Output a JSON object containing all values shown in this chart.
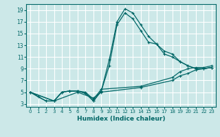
{
  "xlabel": "Humidex (Indice chaleur)",
  "bg_color": "#cce8e8",
  "line_color": "#006666",
  "grid_color": "#ffffff",
  "xlim": [
    -0.5,
    23.5
  ],
  "ylim": [
    2.5,
    20
  ],
  "xticks": [
    0,
    1,
    2,
    3,
    4,
    5,
    6,
    7,
    8,
    9,
    10,
    11,
    12,
    13,
    14,
    15,
    16,
    17,
    18,
    19,
    20,
    21,
    22,
    23
  ],
  "yticks": [
    3,
    5,
    7,
    9,
    11,
    13,
    15,
    17,
    19
  ],
  "series": [
    {
      "x": [
        0,
        1,
        2,
        3,
        4,
        5,
        6,
        7,
        8,
        9,
        10,
        11,
        12,
        13,
        14,
        15,
        16,
        17,
        18,
        19,
        20,
        21,
        22,
        23
      ],
      "y": [
        5,
        4.2,
        3.5,
        3.5,
        5.0,
        5.2,
        5.2,
        4.8,
        3.5,
        5.2,
        10.5,
        17.0,
        19.2,
        18.5,
        16.5,
        14.5,
        13.2,
        12.0,
        11.5,
        10.2,
        9.5,
        9.0,
        9.0,
        9.2
      ]
    },
    {
      "x": [
        0,
        2,
        3,
        4,
        5,
        6,
        7,
        8,
        9,
        10,
        11,
        12,
        13,
        14,
        15,
        16,
        17,
        18,
        19,
        20,
        21,
        22,
        23
      ],
      "y": [
        5,
        3.5,
        3.5,
        5.0,
        5.2,
        5.2,
        4.8,
        3.5,
        5.2,
        9.5,
        16.5,
        18.5,
        17.5,
        15.5,
        13.5,
        13.2,
        11.5,
        11.0,
        10.2,
        9.5,
        9.0,
        9.0,
        9.2
      ]
    },
    {
      "x": [
        0,
        3,
        4,
        5,
        6,
        7,
        8,
        9,
        14,
        18,
        19,
        20,
        21,
        22,
        23
      ],
      "y": [
        5.0,
        3.5,
        5.0,
        5.2,
        5.2,
        5.0,
        3.8,
        5.5,
        6.0,
        7.5,
        8.5,
        9.0,
        9.2,
        9.2,
        9.5
      ]
    },
    {
      "x": [
        0,
        3,
        6,
        8,
        9,
        14,
        18,
        19,
        20,
        21,
        22,
        23
      ],
      "y": [
        5.0,
        3.5,
        5.0,
        4.0,
        5.0,
        5.8,
        7.0,
        7.8,
        8.2,
        8.8,
        9.0,
        9.2
      ]
    }
  ]
}
